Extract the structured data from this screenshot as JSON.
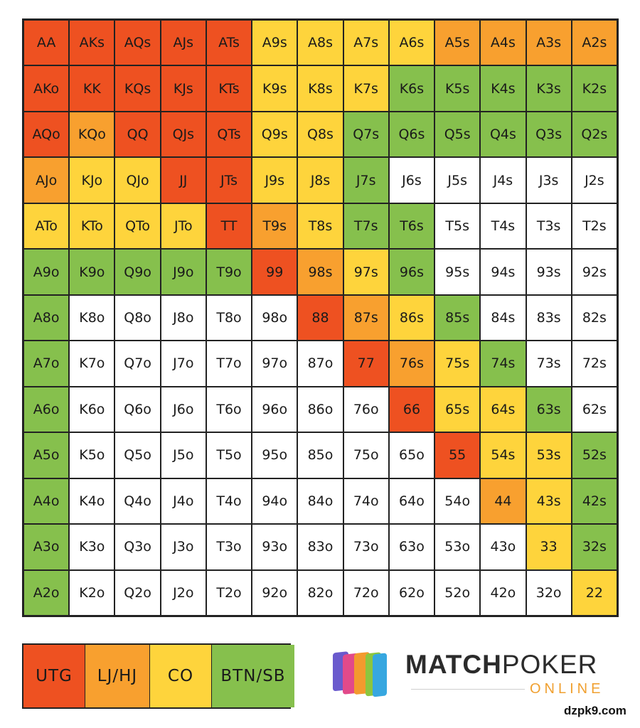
{
  "chart_data": {
    "type": "heatmap",
    "rows": [
      [
        "AA",
        "AKs",
        "AQs",
        "AJs",
        "ATs",
        "A9s",
        "A8s",
        "A7s",
        "A6s",
        "A5s",
        "A4s",
        "A3s",
        "A2s"
      ],
      [
        "AKo",
        "KK",
        "KQs",
        "KJs",
        "KTs",
        "K9s",
        "K8s",
        "K7s",
        "K6s",
        "K5s",
        "K4s",
        "K3s",
        "K2s"
      ],
      [
        "AQo",
        "KQo",
        "QQ",
        "QJs",
        "QTs",
        "Q9s",
        "Q8s",
        "Q7s",
        "Q6s",
        "Q5s",
        "Q4s",
        "Q3s",
        "Q2s"
      ],
      [
        "AJo",
        "KJo",
        "QJo",
        "JJ",
        "JTs",
        "J9s",
        "J8s",
        "J7s",
        "J6s",
        "J5s",
        "J4s",
        "J3s",
        "J2s"
      ],
      [
        "ATo",
        "KTo",
        "QTo",
        "JTo",
        "TT",
        "T9s",
        "T8s",
        "T7s",
        "T6s",
        "T5s",
        "T4s",
        "T3s",
        "T2s"
      ],
      [
        "A9o",
        "K9o",
        "Q9o",
        "J9o",
        "T9o",
        "99",
        "98s",
        "97s",
        "96s",
        "95s",
        "94s",
        "93s",
        "92s"
      ],
      [
        "A8o",
        "K8o",
        "Q8o",
        "J8o",
        "T8o",
        "98o",
        "88",
        "87s",
        "86s",
        "85s",
        "84s",
        "83s",
        "82s"
      ],
      [
        "A7o",
        "K7o",
        "Q7o",
        "J7o",
        "T7o",
        "97o",
        "87o",
        "77",
        "76s",
        "75s",
        "74s",
        "73s",
        "72s"
      ],
      [
        "A6o",
        "K6o",
        "Q6o",
        "J6o",
        "T6o",
        "96o",
        "86o",
        "76o",
        "66",
        "65s",
        "64s",
        "63s",
        "62s"
      ],
      [
        "A5o",
        "K5o",
        "Q5o",
        "J5o",
        "T5o",
        "95o",
        "85o",
        "75o",
        "65o",
        "55",
        "54s",
        "53s",
        "52s"
      ],
      [
        "A4o",
        "K4o",
        "Q4o",
        "J4o",
        "T4o",
        "94o",
        "84o",
        "74o",
        "64o",
        "54o",
        "44",
        "43s",
        "42s"
      ],
      [
        "A3o",
        "K3o",
        "Q3o",
        "J3o",
        "T3o",
        "93o",
        "83o",
        "73o",
        "63o",
        "53o",
        "43o",
        "33",
        "32s"
      ],
      [
        "A2o",
        "K2o",
        "Q2o",
        "J2o",
        "T2o",
        "92o",
        "82o",
        "72o",
        "62o",
        "52o",
        "42o",
        "32o",
        "22"
      ]
    ],
    "levels": [
      [
        1,
        1,
        1,
        1,
        1,
        3,
        3,
        3,
        3,
        2,
        2,
        2,
        2
      ],
      [
        1,
        1,
        1,
        1,
        1,
        3,
        3,
        3,
        4,
        4,
        4,
        4,
        4
      ],
      [
        1,
        2,
        1,
        1,
        1,
        3,
        3,
        4,
        4,
        4,
        4,
        4,
        4
      ],
      [
        2,
        3,
        3,
        1,
        1,
        3,
        3,
        4,
        0,
        0,
        0,
        0,
        0
      ],
      [
        3,
        3,
        3,
        3,
        1,
        2,
        3,
        4,
        4,
        0,
        0,
        0,
        0
      ],
      [
        4,
        4,
        4,
        4,
        4,
        1,
        2,
        3,
        4,
        0,
        0,
        0,
        0
      ],
      [
        4,
        0,
        0,
        0,
        0,
        0,
        1,
        2,
        3,
        4,
        0,
        0,
        0
      ],
      [
        4,
        0,
        0,
        0,
        0,
        0,
        0,
        1,
        2,
        3,
        4,
        0,
        0
      ],
      [
        4,
        0,
        0,
        0,
        0,
        0,
        0,
        0,
        1,
        3,
        3,
        4,
        0
      ],
      [
        4,
        0,
        0,
        0,
        0,
        0,
        0,
        0,
        0,
        1,
        3,
        3,
        4
      ],
      [
        4,
        0,
        0,
        0,
        0,
        0,
        0,
        0,
        0,
        0,
        2,
        3,
        4
      ],
      [
        4,
        0,
        0,
        0,
        0,
        0,
        0,
        0,
        0,
        0,
        0,
        3,
        4
      ],
      [
        4,
        0,
        0,
        0,
        0,
        0,
        0,
        0,
        0,
        0,
        0,
        0,
        3
      ]
    ],
    "legend": [
      {
        "label": "UTG",
        "level": 1
      },
      {
        "label": "LJ/HJ",
        "level": 2
      },
      {
        "label": "CO",
        "level": 3
      },
      {
        "label": "BTN/SB",
        "level": 4
      }
    ]
  },
  "colors": {
    "0": "#ffffff",
    "1": "#ee5121",
    "2": "#f8a02f",
    "3": "#fed43c",
    "4": "#86c04d"
  },
  "logo": {
    "title_bold": "MATCH",
    "title_rest": "POKER",
    "subtitle": "ONLINE"
  },
  "watermark": "dzpk9.com"
}
